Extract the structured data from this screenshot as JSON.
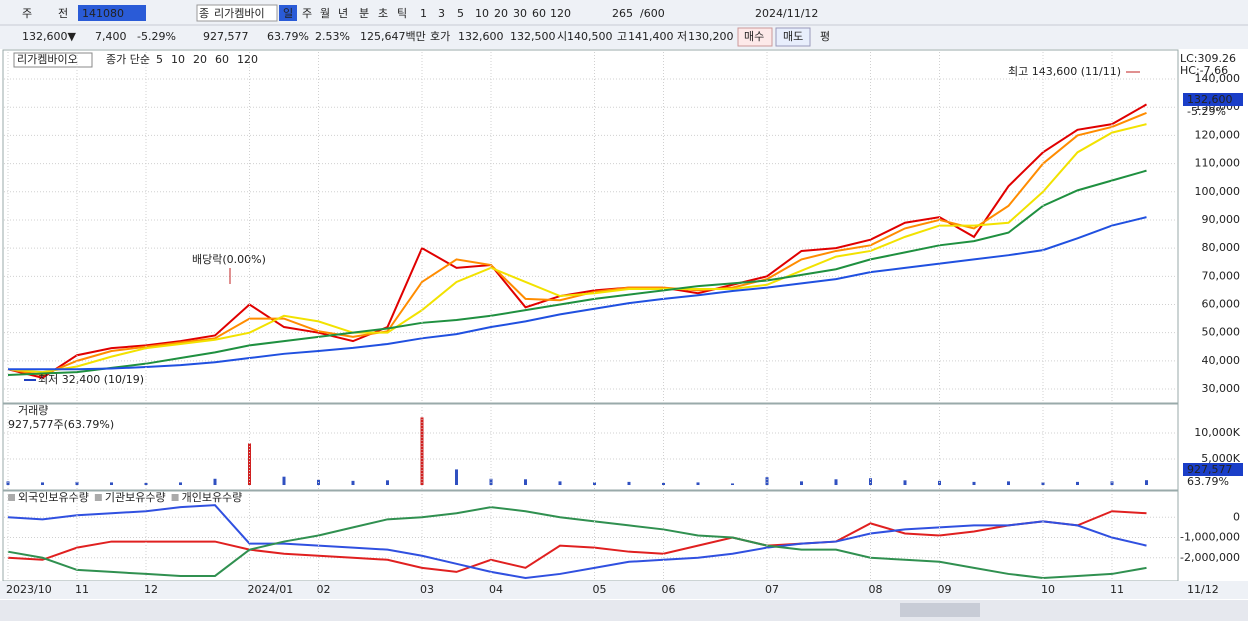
{
  "toolbar": [
    "주",
    "전",
    "141080",
    "종",
    "리가켐바이",
    "일",
    "주",
    "월",
    "년",
    "분",
    "초",
    "틱",
    "1",
    "3",
    "5",
    "10",
    "20",
    "30",
    "60",
    "120",
    "265",
    "/600",
    "2024/11/12"
  ],
  "quote": [
    "132,600▼",
    "7,400",
    "-5.29%",
    "927,577",
    "63.79%",
    "2.53%",
    "125,647백만",
    "호가",
    "132,600",
    "132,500",
    "시",
    "140,500",
    "고",
    "141,400",
    "저",
    "130,200",
    "매수",
    "매도",
    "평"
  ],
  "chart_data": [
    {
      "type": "line",
      "title": "리가켐바이오",
      "legend_label": "종가 단순",
      "grid": true,
      "series": [
        {
          "name": "5",
          "color": "#e00000",
          "values": [
            37000,
            34000,
            42000,
            44500,
            45500,
            47000,
            49000,
            60000,
            52000,
            50000,
            47000,
            52000,
            80000,
            73000,
            74000,
            59000,
            63000,
            65000,
            66000,
            66000,
            64000,
            67000,
            70000,
            79000,
            80000,
            83000,
            89000,
            91000,
            84000,
            102000,
            114000,
            122000,
            124000,
            131000
          ]
        },
        {
          "name": "10",
          "color": "#ff8c00",
          "values": [
            37000,
            35000,
            40000,
            43500,
            45000,
            46500,
            48000,
            55000,
            55000,
            50500,
            48500,
            50500,
            68000,
            76000,
            74000,
            62000,
            61500,
            64500,
            66000,
            66000,
            65000,
            66000,
            69000,
            76000,
            79000,
            81000,
            87000,
            90000,
            87000,
            95000,
            110000,
            120000,
            123000,
            128000
          ]
        },
        {
          "name": "20",
          "color": "#f2e200",
          "values": [
            37000,
            36000,
            38000,
            41500,
            44500,
            46000,
            47500,
            50000,
            56000,
            54000,
            50000,
            50000,
            58000,
            68000,
            73000,
            68000,
            63000,
            64000,
            65500,
            65500,
            65500,
            65500,
            67000,
            72000,
            77000,
            79000,
            84000,
            88000,
            88000,
            89000,
            100000,
            114000,
            121000,
            124000
          ]
        },
        {
          "name": "60",
          "color": "#1f9040",
          "values": [
            35000,
            35500,
            36000,
            37500,
            39000,
            41000,
            43000,
            45500,
            47000,
            48500,
            50000,
            51500,
            53500,
            54500,
            56000,
            58000,
            60000,
            62000,
            63500,
            65000,
            66500,
            67500,
            68500,
            70500,
            72500,
            76000,
            78500,
            81000,
            82500,
            85500,
            95000,
            100500,
            104000,
            107500
          ]
        },
        {
          "name": "120",
          "color": "#2050e0",
          "values": [
            37000,
            37000,
            37000,
            37300,
            37800,
            38500,
            39500,
            41000,
            42500,
            43500,
            44600,
            46000,
            48000,
            49500,
            52000,
            54000,
            56500,
            58500,
            60500,
            62000,
            63300,
            64800,
            66000,
            67500,
            69000,
            71500,
            73000,
            74500,
            76000,
            77500,
            79300,
            83500,
            88000,
            91000
          ]
        }
      ],
      "ylim": [
        25400,
        149600
      ],
      "yticks": [
        {
          "value": 30000,
          "label": "30,000"
        },
        {
          "value": 40000,
          "label": "40,000"
        },
        {
          "value": 50000,
          "label": "50,000"
        },
        {
          "value": 60000,
          "label": "60,000"
        },
        {
          "value": 70000,
          "label": "70,000"
        },
        {
          "value": 80000,
          "label": "80,000"
        },
        {
          "value": 90000,
          "label": "90,000"
        },
        {
          "value": 100000,
          "label": "100,000"
        },
        {
          "value": 110000,
          "label": "110,000"
        },
        {
          "value": 120000,
          "label": "120,000"
        },
        {
          "value": 130000,
          "label": "130,000"
        },
        {
          "value": 140000,
          "label": "140,000"
        }
      ],
      "annotations": {
        "high": "최고 143,600 (11/11)",
        "low": "최저 32,400 (10/19)",
        "dividend": "배당락(0.00%)",
        "lc": "LC:309.26",
        "hc": "HC:-7.66",
        "last_price": "132,600",
        "last_change": "-5.29%"
      }
    },
    {
      "type": "bar",
      "title": "거래량",
      "subtitle": "927,577주(63.79%)",
      "color": "#3050c0",
      "values": [
        700,
        500,
        600,
        500,
        400,
        500,
        1200,
        8000,
        1600,
        1000,
        800,
        900,
        13000,
        3000,
        1200,
        1100,
        700,
        500,
        600,
        400,
        500,
        300,
        1500,
        700,
        1100,
        1300,
        900,
        800,
        600,
        700,
        500,
        600,
        700,
        927.577
      ],
      "ylim": [
        -960,
        15580
      ],
      "yticks": [
        {
          "value": 5000,
          "label": "5,000K"
        },
        {
          "value": 10000,
          "label": "10,000K"
        }
      ],
      "annotations": {
        "last_volume": "927,577",
        "last_ratio": "63.79%"
      }
    },
    {
      "type": "line",
      "grid": true,
      "series": [
        {
          "name": "외국인보유수량",
          "color": "#e02020",
          "values": [
            -2000000,
            -2100000,
            -1500000,
            -1200000,
            -1200000,
            -1200000,
            -1200000,
            -1600000,
            -1800000,
            -1900000,
            -2000000,
            -2100000,
            -2500000,
            -2700000,
            -2100000,
            -2500000,
            -1400000,
            -1500000,
            -1700000,
            -1800000,
            -1400000,
            -1000000,
            -1400000,
            -1300000,
            -1200000,
            -300000,
            -800000,
            -900000,
            -700000,
            -400000,
            -200000,
            -400000,
            300000,
            200000
          ]
        },
        {
          "name": "기관보유수량",
          "color": "#3050e0",
          "values": [
            0,
            -100000,
            100000,
            200000,
            300000,
            500000,
            600000,
            -1300000,
            -1300000,
            -1400000,
            -1500000,
            -1600000,
            -1900000,
            -2300000,
            -2700000,
            -3000000,
            -2800000,
            -2500000,
            -2200000,
            -2100000,
            -2000000,
            -1800000,
            -1500000,
            -1300000,
            -1200000,
            -800000,
            -600000,
            -500000,
            -400000,
            -400000,
            -200000,
            -400000,
            -1000000,
            -1400000
          ]
        },
        {
          "name": "개인보유수량",
          "color": "#309050",
          "values": [
            -1700000,
            -2000000,
            -2600000,
            -2700000,
            -2800000,
            -2900000,
            -2900000,
            -1600000,
            -1200000,
            -900000,
            -500000,
            -100000,
            0,
            200000,
            500000,
            300000,
            0,
            -200000,
            -400000,
            -600000,
            -900000,
            -1000000,
            -1400000,
            -1600000,
            -1600000,
            -2000000,
            -2100000,
            -2200000,
            -2500000,
            -2800000,
            -3000000,
            -2900000,
            -2800000,
            -2500000
          ]
        }
      ],
      "ylim": [
        -3100000,
        1300000
      ],
      "yticks": [
        0,
        {
          "value": -1000000,
          "label": "-1,000,000"
        },
        {
          "value": -2000000,
          "label": "-2,000,000"
        }
      ],
      "categories": [
        "2023/10",
        null,
        "11",
        null,
        "12",
        null,
        null,
        "2024/01",
        null,
        "02",
        null,
        null,
        "03",
        null,
        "04",
        null,
        null,
        "05",
        null,
        "06",
        null,
        null,
        "07",
        null,
        null,
        "08",
        null,
        "09",
        null,
        null,
        "10",
        null,
        "11",
        null
      ],
      "x_end_label": "11/12"
    }
  ]
}
